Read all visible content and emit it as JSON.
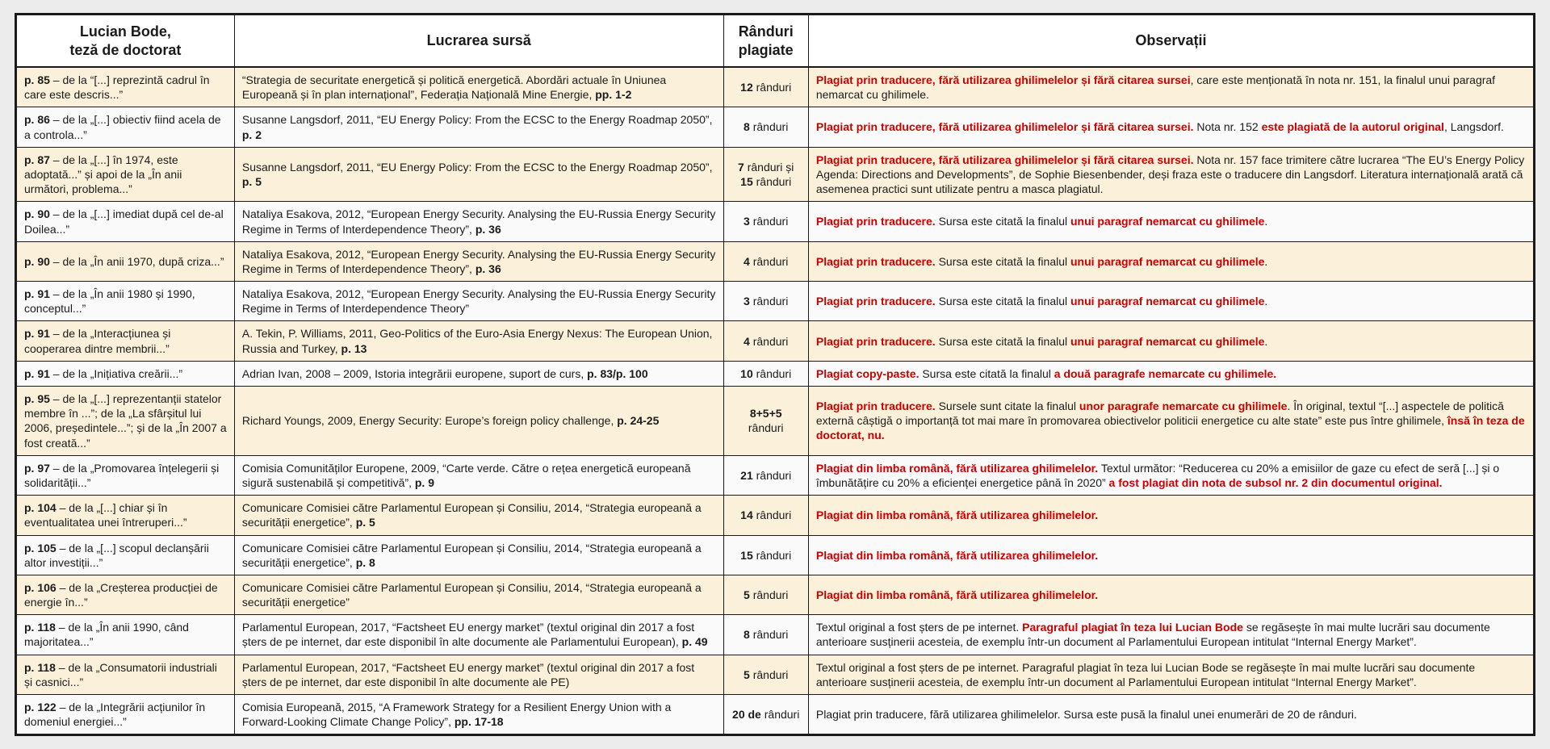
{
  "colors": {
    "accent_red": "#cc0000",
    "row_beige": "#fbf1da",
    "row_white": "#fafafa",
    "border": "#1a1a1a",
    "page_background": "#ececec"
  },
  "table": {
    "headers": {
      "col1": "Lucian Bode,\nteză de doctorat",
      "col2": "Lucrarea sursă",
      "col3": "Rânduri\nplagiate",
      "col4": "Observații"
    },
    "rows": [
      {
        "thesis": [
          {
            "t": "p. 85",
            "s": "b"
          },
          {
            "t": " – de la “[...] reprezintă cadrul în care este descris...”",
            "s": "n"
          }
        ],
        "source": [
          {
            "t": "“Strategia de securitate energetică și politică energetică. Abordări actuale în Uniunea Europeană și în plan internațional”, Federația Națională Mine Energie, ",
            "s": "n"
          },
          {
            "t": "pp. 1-2",
            "s": "b"
          }
        ],
        "lines": [
          {
            "t": "12 ",
            "s": "b"
          },
          {
            "t": "rânduri",
            "s": "n"
          }
        ],
        "obs": [
          {
            "t": "Plagiat prin traducere, fără utilizarea ghilimelelor și fără citarea sursei",
            "s": "rb"
          },
          {
            "t": ", care este menționată în nota nr. 151, la finalul unui paragraf nemarcat cu ghilimele.",
            "s": "n"
          }
        ]
      },
      {
        "thesis": [
          {
            "t": "p. 86",
            "s": "b"
          },
          {
            "t": " – de la „[...] obiectiv fiind acela de a controla...”",
            "s": "n"
          }
        ],
        "source": [
          {
            "t": "Susanne Langsdorf, 2011, “EU Energy Policy: From the ECSC to the Energy Roadmap 2050”, ",
            "s": "n"
          },
          {
            "t": "p. 2",
            "s": "b"
          }
        ],
        "lines": [
          {
            "t": "8 ",
            "s": "b"
          },
          {
            "t": "rânduri",
            "s": "n"
          }
        ],
        "obs": [
          {
            "t": "Plagiat prin traducere, fără utilizarea ghilimelelor și fără citarea sursei. ",
            "s": "rb"
          },
          {
            "t": "Nota nr. 152 ",
            "s": "n"
          },
          {
            "t": "este plagiată de la autorul original",
            "s": "rb"
          },
          {
            "t": ", Langsdorf.",
            "s": "n"
          }
        ]
      },
      {
        "thesis": [
          {
            "t": "p. 87",
            "s": "b"
          },
          {
            "t": " – de la „[...] în 1974, este adoptată...” și apoi de la „În anii următori, problema...”",
            "s": "n"
          }
        ],
        "source": [
          {
            "t": "Susanne Langsdorf, 2011, “EU Energy Policy: From the ECSC to the Energy Roadmap 2050”, ",
            "s": "n"
          },
          {
            "t": "p. 5",
            "s": "b"
          }
        ],
        "lines": [
          {
            "t": "7 ",
            "s": "b"
          },
          {
            "t": "rânduri și ",
            "s": "n"
          },
          {
            "t": "15 ",
            "s": "b"
          },
          {
            "t": "rânduri",
            "s": "n"
          }
        ],
        "obs": [
          {
            "t": "Plagiat prin traducere, fără utilizarea ghilimelelor și fără citarea sursei. ",
            "s": "rb"
          },
          {
            "t": "Nota nr. 157 face trimitere către lucrarea “The EU’s Energy Policy Agenda: Directions and Developments”, de Sophie Biesenbender, deși fraza este o traducere din Langsdorf. Literatura internațională arată că asemenea practici sunt utilizate pentru a masca plagiatul.",
            "s": "n"
          }
        ]
      },
      {
        "thesis": [
          {
            "t": "p. 90",
            "s": "b"
          },
          {
            "t": " – de la „[...] imediat după cel de-al Doilea...”",
            "s": "n"
          }
        ],
        "source": [
          {
            "t": "Nataliya Esakova, 2012, “European Energy Security. Analysing the EU-Russia Energy Security Regime in Terms of Interdependence Theory”, ",
            "s": "n"
          },
          {
            "t": "p. 36",
            "s": "b"
          }
        ],
        "lines": [
          {
            "t": "3 ",
            "s": "b"
          },
          {
            "t": "rânduri",
            "s": "n"
          }
        ],
        "obs": [
          {
            "t": "Plagiat prin traducere.",
            "s": "rb"
          },
          {
            "t": " Sursa este citată la finalul ",
            "s": "n"
          },
          {
            "t": "unui paragraf nemarcat cu ghilimele",
            "s": "rb"
          },
          {
            "t": ".",
            "s": "n"
          }
        ]
      },
      {
        "thesis": [
          {
            "t": "p. 90",
            "s": "b"
          },
          {
            "t": " – de la „În anii 1970, după criza...”",
            "s": "n"
          }
        ],
        "source": [
          {
            "t": "Nataliya Esakova, 2012, “European Energy Security. Analysing the EU-Russia Energy Security Regime in Terms of Interdependence Theory”, ",
            "s": "n"
          },
          {
            "t": "p. 36",
            "s": "b"
          }
        ],
        "lines": [
          {
            "t": "4 ",
            "s": "b"
          },
          {
            "t": "rânduri",
            "s": "n"
          }
        ],
        "obs": [
          {
            "t": "Plagiat prin traducere.",
            "s": "rb"
          },
          {
            "t": " Sursa este citată la finalul ",
            "s": "n"
          },
          {
            "t": "unui paragraf nemarcat cu ghilimele",
            "s": "rb"
          },
          {
            "t": ".",
            "s": "n"
          }
        ]
      },
      {
        "thesis": [
          {
            "t": "p. 91",
            "s": "b"
          },
          {
            "t": " – de la „În anii 1980 și 1990, conceptul...”",
            "s": "n"
          }
        ],
        "source": [
          {
            "t": "Nataliya Esakova, 2012, “European Energy Security. Analysing the EU-Russia Energy Security Regime in Terms of Interdependence Theory”",
            "s": "n"
          }
        ],
        "lines": [
          {
            "t": "3 ",
            "s": "b"
          },
          {
            "t": "rânduri",
            "s": "n"
          }
        ],
        "obs": [
          {
            "t": "Plagiat prin traducere.",
            "s": "rb"
          },
          {
            "t": " Sursa este citată la finalul ",
            "s": "n"
          },
          {
            "t": "unui paragraf nemarcat cu ghilimele",
            "s": "rb"
          },
          {
            "t": ".",
            "s": "n"
          }
        ]
      },
      {
        "thesis": [
          {
            "t": "p. 91",
            "s": "b"
          },
          {
            "t": " – de la „Interacțiunea și cooperarea dintre membrii...”",
            "s": "n"
          }
        ],
        "source": [
          {
            "t": "A. Tekin, P. Williams, 2011, Geo-Politics of the Euro-Asia Energy Nexus: The European Union, Russia and Turkey, ",
            "s": "n"
          },
          {
            "t": "p. 13",
            "s": "b"
          }
        ],
        "lines": [
          {
            "t": "4 ",
            "s": "b"
          },
          {
            "t": "rânduri",
            "s": "n"
          }
        ],
        "obs": [
          {
            "t": "Plagiat prin traducere.",
            "s": "rb"
          },
          {
            "t": " Sursa este citată la finalul ",
            "s": "n"
          },
          {
            "t": "unui paragraf nemarcat cu ghilimele",
            "s": "rb"
          },
          {
            "t": ".",
            "s": "n"
          }
        ]
      },
      {
        "thesis": [
          {
            "t": "p. 91",
            "s": "b"
          },
          {
            "t": " – de la „Inițiativa creării...”",
            "s": "n"
          }
        ],
        "source": [
          {
            "t": "Adrian Ivan, 2008 – 2009, Istoria integrării europene, suport de curs, ",
            "s": "n"
          },
          {
            "t": "p. 83/p. 100",
            "s": "b"
          }
        ],
        "lines": [
          {
            "t": "10 ",
            "s": "b"
          },
          {
            "t": "rânduri",
            "s": "n"
          }
        ],
        "obs": [
          {
            "t": "Plagiat copy-paste.",
            "s": "rb"
          },
          {
            "t": " Sursa este citată la finalul ",
            "s": "n"
          },
          {
            "t": "a două paragrafe nemarcate cu ghilimele.",
            "s": "rb"
          }
        ]
      },
      {
        "thesis": [
          {
            "t": "p. 95",
            "s": "b"
          },
          {
            "t": " – de la „[...] reprezentanții statelor membre în ...”; de la „La sfârșitul lui 2006, președintele...”; și de la „În 2007 a fost creată...”",
            "s": "n"
          }
        ],
        "source": [
          {
            "t": "Richard Youngs, 2009, Energy Security: Europe’s foreign policy challenge, ",
            "s": "n"
          },
          {
            "t": "p. 24-25",
            "s": "b"
          }
        ],
        "lines": [
          {
            "t": "8+5+5 ",
            "s": "b"
          },
          {
            "t": "rânduri",
            "s": "n"
          }
        ],
        "obs": [
          {
            "t": "Plagiat prin traducere.",
            "s": "rb"
          },
          {
            "t": " Sursele sunt citate la finalul ",
            "s": "n"
          },
          {
            "t": "unor paragrafe nemarcate cu ghilimele",
            "s": "rb"
          },
          {
            "t": ". În original, textul “[...] aspectele de politică externă câștigă o importanță tot mai mare în promovarea obiectivelor politicii energetice cu alte state” este pus între ghilimele, ",
            "s": "n"
          },
          {
            "t": "însă în teza de doctorat, nu.",
            "s": "rb"
          }
        ]
      },
      {
        "thesis": [
          {
            "t": "p. 97",
            "s": "b"
          },
          {
            "t": " – de la „Promovarea înțelegerii și solidarității...”",
            "s": "n"
          }
        ],
        "source": [
          {
            "t": "Comisia Comunităților Europene, 2009, “Carte verde. Către o rețea energetică europeană sigură sustenabilă și competitivă”, ",
            "s": "n"
          },
          {
            "t": "p. 9",
            "s": "b"
          }
        ],
        "lines": [
          {
            "t": "21 ",
            "s": "b"
          },
          {
            "t": "rânduri",
            "s": "n"
          }
        ],
        "obs": [
          {
            "t": "Plagiat din limba română, fără utilizarea ghilimelelor.",
            "s": "rb"
          },
          {
            "t": " Textul următor: “Reducerea cu 20% a emisiilor de gaze cu efect de seră [...] și o îmbunătățire cu 20% a eficienței energetice până în 2020” ",
            "s": "n"
          },
          {
            "t": "a fost plagiat din nota de subsol nr. 2 din documentul original.",
            "s": "rb"
          }
        ]
      },
      {
        "thesis": [
          {
            "t": "p. 104",
            "s": "b"
          },
          {
            "t": " – de la „[...] chiar și în eventualitatea unei întreruperi...”",
            "s": "n"
          }
        ],
        "source": [
          {
            "t": "Comunicare Comisiei către Parlamentul European și Consiliu, 2014, “Strategia europeană a securității energetice”, ",
            "s": "n"
          },
          {
            "t": "p. 5",
            "s": "b"
          }
        ],
        "lines": [
          {
            "t": "14 ",
            "s": "b"
          },
          {
            "t": "rânduri",
            "s": "n"
          }
        ],
        "obs": [
          {
            "t": "Plagiat din limba română, fără utilizarea ghilimelelor.",
            "s": "rb"
          }
        ]
      },
      {
        "thesis": [
          {
            "t": "p. 105",
            "s": "b"
          },
          {
            "t": " – de la „[...] scopul declanșării altor investiții...”",
            "s": "n"
          }
        ],
        "source": [
          {
            "t": "Comunicare Comisiei către Parlamentul European și Consiliu, 2014, “Strategia europeană a securității energetice”, ",
            "s": "n"
          },
          {
            "t": "p. 8",
            "s": "b"
          }
        ],
        "lines": [
          {
            "t": "15 ",
            "s": "b"
          },
          {
            "t": "rânduri",
            "s": "n"
          }
        ],
        "obs": [
          {
            "t": "Plagiat din limba română, fără utilizarea ghilimelelor.",
            "s": "rb"
          }
        ]
      },
      {
        "thesis": [
          {
            "t": "p. 106",
            "s": "b"
          },
          {
            "t": " – de la „Creșterea producției de energie în...”",
            "s": "n"
          }
        ],
        "source": [
          {
            "t": "Comunicare Comisiei către Parlamentul European și Consiliu, 2014, “Strategia europeană a securității energetice”",
            "s": "n"
          }
        ],
        "lines": [
          {
            "t": "5 ",
            "s": "b"
          },
          {
            "t": "rânduri",
            "s": "n"
          }
        ],
        "obs": [
          {
            "t": "Plagiat din limba română, fără utilizarea ghilimelelor.",
            "s": "rb"
          }
        ]
      },
      {
        "thesis": [
          {
            "t": "p. 118",
            "s": "b"
          },
          {
            "t": " – de la „În anii 1990, când majoritatea...”",
            "s": "n"
          }
        ],
        "source": [
          {
            "t": "Parlamentul European, 2017, “Factsheet EU energy market” (textul original din 2017 a fost șters de pe internet, dar este disponibil în alte documente ale Parlamentului European), ",
            "s": "n"
          },
          {
            "t": "p. 49",
            "s": "b"
          }
        ],
        "lines": [
          {
            "t": "8 ",
            "s": "b"
          },
          {
            "t": "rânduri",
            "s": "n"
          }
        ],
        "obs": [
          {
            "t": "Textul original a fost șters de pe internet. ",
            "s": "n"
          },
          {
            "t": "Paragraful plagiat în teza lui Lucian Bode",
            "s": "rb"
          },
          {
            "t": " se regăsește în mai multe lucrări sau documente anterioare susținerii acesteia, de exemplu într-un document al Parlamentului European intitulat “Internal Energy Market”.",
            "s": "n"
          }
        ]
      },
      {
        "thesis": [
          {
            "t": "p. 118",
            "s": "b"
          },
          {
            "t": " – de la „Consumatorii industriali și casnici...”",
            "s": "n"
          }
        ],
        "source": [
          {
            "t": "Parlamentul European, 2017, “Factsheet EU energy market” (textul original din 2017 a fost șters de pe internet, dar este disponibil în alte documente ale PE)",
            "s": "n"
          }
        ],
        "lines": [
          {
            "t": "5 ",
            "s": "b"
          },
          {
            "t": "rânduri",
            "s": "n"
          }
        ],
        "obs": [
          {
            "t": "Textul original a fost șters de pe internet. Paragraful plagiat în teza lui Lucian Bode se regăsește în mai multe lucrări sau documente anterioare susținerii acesteia, de exemplu într-un document al Parlamentului European intitulat “Internal Energy Market”.",
            "s": "n"
          }
        ]
      },
      {
        "thesis": [
          {
            "t": "p. 122",
            "s": "b"
          },
          {
            "t": " – de la „Integrării acțiunilor în domeniul energiei...”",
            "s": "n"
          }
        ],
        "source": [
          {
            "t": "Comisia Europeană, 2015, “A Framework Strategy for a Resilient Energy Union with a Forward-Looking Climate Change Policy”, ",
            "s": "n"
          },
          {
            "t": "pp. 17-18",
            "s": "b"
          }
        ],
        "lines": [
          {
            "t": "20 de ",
            "s": "b"
          },
          {
            "t": "rânduri",
            "s": "n"
          }
        ],
        "obs": [
          {
            "t": "Plagiat prin traducere, fără utilizarea ghilimelelor. Sursa este pusă la finalul unei enumerări de 20 de rânduri.",
            "s": "n"
          }
        ]
      }
    ]
  }
}
